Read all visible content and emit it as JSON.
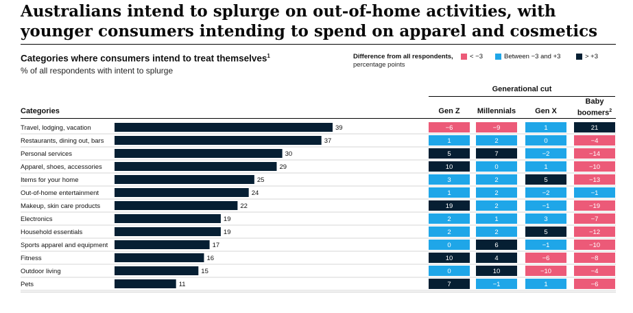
{
  "title": "Australians intend to splurge on out-of-home activities, with younger consumers intending to spend on apparel and cosmetics",
  "chart_title": "Categories where consumers intend to treat themselves",
  "chart_title_note": "1",
  "subtitle": "% of all respondents with intent to splurge",
  "legend": {
    "title": "Difference from all respondents,",
    "unit": "percentage points",
    "items": [
      {
        "label": "< −3",
        "color": "#ec5a78"
      },
      {
        "label": "Between −3 and +3",
        "color": "#1fa6e8"
      },
      {
        "label": "> +3",
        "color": "#061f33"
      }
    ]
  },
  "generational_cut_label": "Generational cut",
  "categories_header": "Categories",
  "columns": [
    {
      "label": "Gen Z",
      "note": ""
    },
    {
      "label": "Millennials",
      "note": ""
    },
    {
      "label": "Gen X",
      "note": ""
    },
    {
      "label": "Baby boomers",
      "note": "2"
    }
  ],
  "chart_data": {
    "type": "bar",
    "orientation": "horizontal",
    "bar_color": "#061f33",
    "xlim": [
      0,
      39
    ],
    "categories": [
      "Travel, lodging, vacation",
      "Restaurants, dining out, bars",
      "Personal services",
      "Apparel, shoes, accessories",
      "Items for your home",
      "Out-of-home entertainment",
      "Makeup, skin care products",
      "Electronics",
      "Household essentials",
      "Sports apparel and equipment",
      "Fitness",
      "Outdoor living",
      "Pets"
    ],
    "values": [
      39,
      37,
      30,
      29,
      25,
      24,
      22,
      19,
      19,
      17,
      16,
      15,
      11
    ],
    "differences": {
      "Gen Z": [
        -6,
        1,
        5,
        10,
        3,
        1,
        19,
        2,
        2,
        0,
        10,
        0,
        7
      ],
      "Millennials": [
        -9,
        2,
        7,
        0,
        2,
        2,
        2,
        1,
        2,
        6,
        4,
        10,
        -1
      ],
      "Gen X": [
        1,
        0,
        -2,
        1,
        5,
        -2,
        -1,
        3,
        5,
        -1,
        -6,
        -10,
        1
      ],
      "Baby boomers": [
        21,
        -4,
        -14,
        -10,
        -13,
        -1,
        -19,
        -7,
        -12,
        -10,
        -8,
        -4,
        -6
      ]
    }
  }
}
